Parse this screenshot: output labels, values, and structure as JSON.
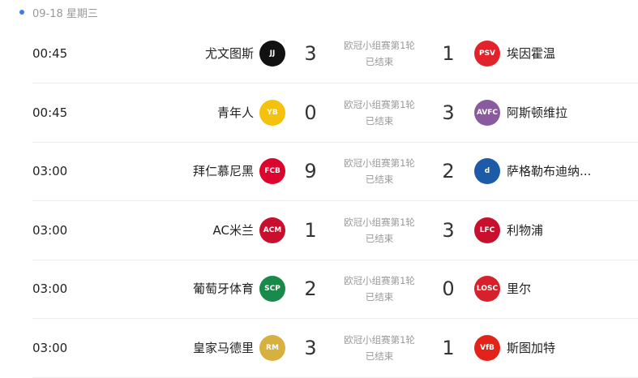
{
  "date_header": "09-18 星期三",
  "accent": "#3b7cf0",
  "matches": [
    {
      "time": "00:45",
      "home": "尤文图斯",
      "home_logo": "juventus-logo",
      "home_score": "3",
      "competition": "欧冠小组赛第1轮",
      "status": "已结束",
      "away_score": "1",
      "away": "埃因霍温",
      "away_logo": "psv-logo",
      "hc": "#111",
      "ac": "#e3232b",
      "ht": "JJ",
      "at": "PSV"
    },
    {
      "time": "00:45",
      "home": "青年人",
      "home_logo": "young-boys-logo",
      "home_score": "0",
      "competition": "欧冠小组赛第1轮",
      "status": "已结束",
      "away_score": "3",
      "away": "阿斯顿维拉",
      "away_logo": "aston-villa-logo",
      "hc": "#f4c20d",
      "ac": "#8a5aa0",
      "ht": "YB",
      "at": "AVFC"
    },
    {
      "time": "03:00",
      "home": "拜仁慕尼黑",
      "home_logo": "bayern-logo",
      "home_score": "9",
      "competition": "欧冠小组赛第1轮",
      "status": "已结束",
      "away_score": "2",
      "away": "萨格勒布迪纳...",
      "away_logo": "dinamo-zagreb-logo",
      "hc": "#dc052d",
      "ac": "#1d5ba8",
      "ht": "FCB",
      "at": "d"
    },
    {
      "time": "03:00",
      "home": "AC米兰",
      "home_logo": "ac-milan-logo",
      "home_score": "1",
      "competition": "欧冠小组赛第1轮",
      "status": "已结束",
      "away_score": "3",
      "away": "利物浦",
      "away_logo": "liverpool-logo",
      "hc": "#c8102e",
      "ac": "#c8102e",
      "ht": "ACM",
      "at": "LFC"
    },
    {
      "time": "03:00",
      "home": "葡萄牙体育",
      "home_logo": "sporting-logo",
      "home_score": "2",
      "competition": "欧冠小组赛第1轮",
      "status": "已结束",
      "away_score": "0",
      "away": "里尔",
      "away_logo": "lille-logo",
      "hc": "#1a8a4a",
      "ac": "#d6202b",
      "ht": "SCP",
      "at": "LOSC"
    },
    {
      "time": "03:00",
      "home": "皇家马德里",
      "home_logo": "real-madrid-logo",
      "home_score": "3",
      "competition": "欧冠小组赛第1轮",
      "status": "已结束",
      "away_score": "1",
      "away": "斯图加特",
      "away_logo": "stuttgart-logo",
      "hc": "#d8b040",
      "ac": "#e32219",
      "ht": "RM",
      "at": "VfB"
    }
  ]
}
